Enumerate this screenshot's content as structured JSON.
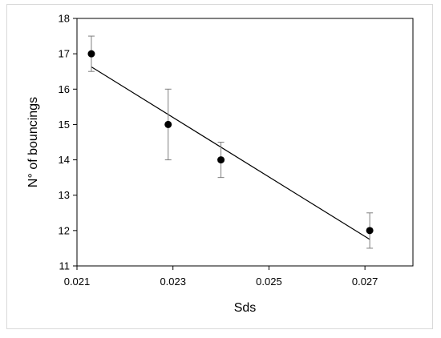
{
  "chart_data": {
    "type": "scatter",
    "title": "",
    "xlabel": "Sds",
    "ylabel": "N° of bouncings",
    "xlim": [
      0.021,
      0.028
    ],
    "ylim": [
      11,
      18
    ],
    "x_ticks": [
      "0.021",
      "0.023",
      "0.025",
      "0.027"
    ],
    "x_tick_values": [
      0.021,
      0.023,
      0.025,
      0.027
    ],
    "y_ticks": [
      "11",
      "12",
      "13",
      "14",
      "15",
      "16",
      "17",
      "18"
    ],
    "y_tick_values": [
      11,
      12,
      13,
      14,
      15,
      16,
      17,
      18
    ],
    "grid": false,
    "legend": "none",
    "series": [
      {
        "points": [
          {
            "x": 0.0213,
            "y": 17,
            "err_low": 16.5,
            "err_high": 17.5
          },
          {
            "x": 0.0229,
            "y": 15,
            "err_low": 14.0,
            "err_high": 16.0
          },
          {
            "x": 0.024,
            "y": 14,
            "err_low": 13.5,
            "err_high": 14.5
          },
          {
            "x": 0.0271,
            "y": 12,
            "err_low": 11.5,
            "err_high": 12.5
          }
        ],
        "marker_color": "#000000",
        "errorbar_color": "#7f7f7f"
      }
    ],
    "trendline": {
      "type": "linear",
      "x_start": 0.0213,
      "y_start": 16.63,
      "x_end": 0.0271,
      "y_end": 11.75,
      "color": "#000000"
    }
  }
}
